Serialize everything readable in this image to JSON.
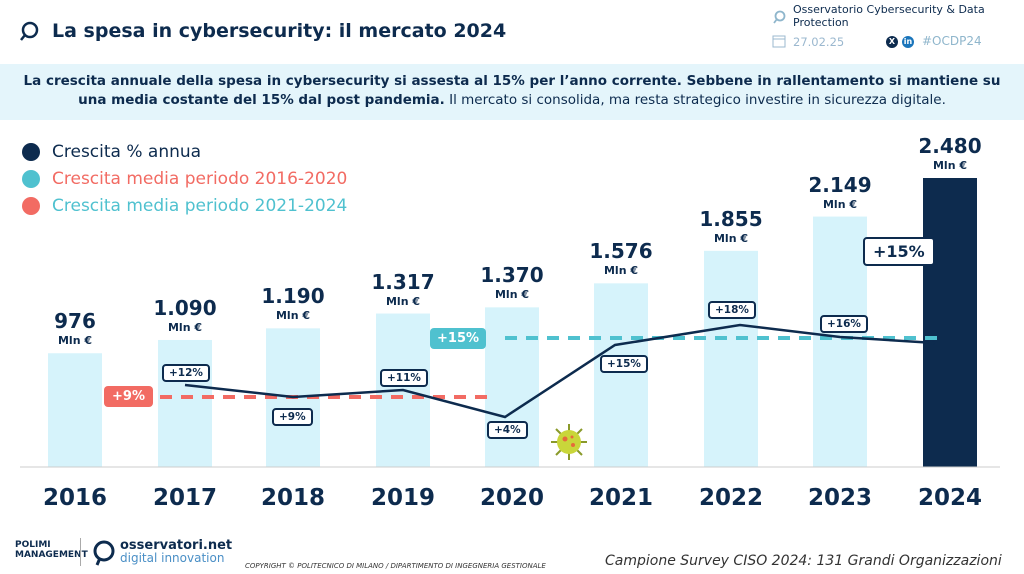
{
  "header": {
    "title": "La spesa in cybersecurity: il mercato 2024",
    "observatory": "Osservatorio Cybersecurity & Data Protection",
    "date": "27.02.25",
    "hashtag": "#OCDP24",
    "social": [
      "x-icon",
      "linkedin-icon"
    ]
  },
  "banner": {
    "bold": "La crescita annuale della spesa in cybersecurity si assesta al 15% per l’anno corrente. Sebbene in rallentamento si mantiene su una media costante del 15% dal post pandemia.",
    "normal": " Il mercato si consolida, ma resta strategico investire in sicurezza digitale."
  },
  "chart_data": {
    "type": "bar",
    "categories": [
      "2016",
      "2017",
      "2018",
      "2019",
      "2020",
      "2021",
      "2022",
      "2023",
      "2024"
    ],
    "values": [
      976,
      1090,
      1190,
      1317,
      1370,
      1576,
      1855,
      2149,
      2480
    ],
    "value_labels": [
      "976",
      "1.090",
      "1.190",
      "1.317",
      "1.370",
      "1.576",
      "1.855",
      "2.149",
      "2.480"
    ],
    "unit": "Mln €",
    "growth_line": {
      "name": "Crescita % annua",
      "categories": [
        "2017",
        "2018",
        "2019",
        "2020",
        "2021",
        "2022",
        "2023",
        "2024"
      ],
      "values": [
        12,
        9,
        11,
        4,
        15,
        18,
        16,
        15
      ],
      "labels": [
        "+12%",
        "+9%",
        "+11%",
        "+4%",
        "+15%",
        "+18%",
        "+16%",
        ""
      ]
    },
    "averages": [
      {
        "name": "Crescita media periodo 2016-2020",
        "value": 9,
        "label": "+9%",
        "color": "#f26b63"
      },
      {
        "name": "Crescita media periodo 2021-2024",
        "value": 15,
        "label": "+15%",
        "color": "#4fc1cf"
      }
    ],
    "callout_2024": "+15%",
    "legend": [
      {
        "label": "Crescita % annua",
        "dot": "#0d2b4e",
        "text": "#0d2b4e"
      },
      {
        "label": "Crescita media periodo 2016-2020",
        "dot": "#4fc1cf",
        "text": "#f26b63"
      },
      {
        "label": "Crescita media periodo 2021-2024",
        "dot": "#f26b63",
        "text": "#4fc1cf"
      }
    ],
    "colors": {
      "bar": "#d6f3fb",
      "bar_highlight": "#0d2b4e",
      "line": "#0d2b4e"
    }
  },
  "footer": {
    "logo1": "POLIMI MANAGEMENT",
    "logo2a": "osservatori.net",
    "logo2b": "digital innovation",
    "copyright": "COPYRIGHT © POLITECNICO DI MILANO / DIPARTIMENTO DI INGEGNERIA GESTIONALE",
    "sample": "Campione Survey CISO 2024: 131 Grandi Organizzazioni"
  }
}
